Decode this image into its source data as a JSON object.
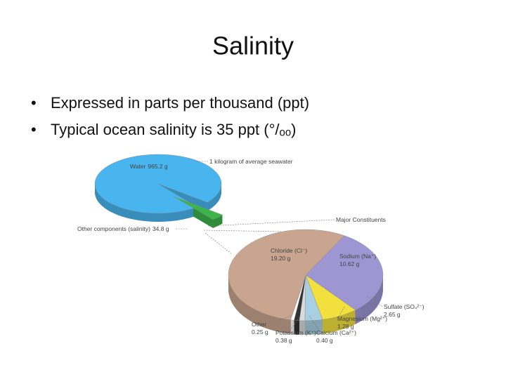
{
  "title": "Salinity",
  "bullets": [
    "Expressed in parts per thousand (ppt)",
    "Typical ocean salinity is 35 ppt (°/ₒₒ)"
  ],
  "figure": {
    "seawater": {
      "caption": "1 kilogram of average seawater",
      "parts": [
        {
          "name": "Water",
          "value": 965.2,
          "value_label": "965.2 g",
          "color": "#48b5ee"
        },
        {
          "name": "Other components (salinity)",
          "value": 34.8,
          "value_label": "34.8 g",
          "color": "#3cb44a"
        }
      ]
    },
    "constituents": {
      "caption": "Major Constituents",
      "parts": [
        {
          "name": "Sodium (Na⁺)",
          "value": 10.62,
          "value_label": "10.62 g",
          "color": "#9d96d2"
        },
        {
          "name": "Sulfate (SO₄²⁻)",
          "value": 2.65,
          "value_label": "2.65 g",
          "color": "#f2e03e"
        },
        {
          "name": "Magnesium (Mg²⁺)",
          "value": 1.28,
          "value_label": "1.28 g",
          "color": "#a9d0e2"
        },
        {
          "name": "Calcium (Ca²⁺)",
          "value": 0.4,
          "value_label": "0.40 g",
          "color": "#d8dadb"
        },
        {
          "name": "Potassium (K⁺)",
          "value": 0.38,
          "value_label": "0.38 g",
          "color": "#333333"
        },
        {
          "name": "Other",
          "value": 0.25,
          "value_label": "0.25 g",
          "color": "#ffffff"
        },
        {
          "name": "Chloride (Cl⁻)",
          "value": 19.2,
          "value_label": "19.20 g",
          "color": "#c9a590"
        }
      ]
    }
  }
}
